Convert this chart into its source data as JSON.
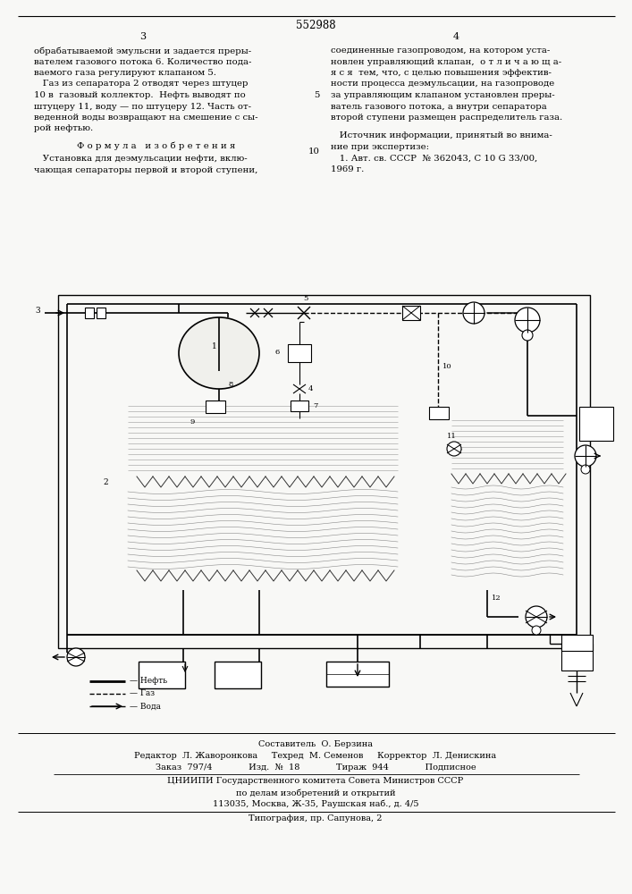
{
  "patent_number": "552988",
  "page_numbers": [
    "3",
    "4"
  ],
  "text_left": [
    "обрабатываемой эмульсни и задается преры-",
    "вателем газового потока 6. Количество пода-",
    "ваемого газа регулируют клапаном 5.",
    "   Газ из сепаратора 2 отводят через штуцер",
    "10 в  газовый коллектор.  Нефть выводят по",
    "штуцеру 11, воду — по штуцеру 12. Часть от-",
    "веденной воды возвращают на смешение с сы-",
    "рой нефтью."
  ],
  "formula_title": "Ф о р м у л а   и з о б р е т е н и я",
  "formula_text": [
    "   Установка для деэмульсации нефти, вклю-",
    "чающая сепараторы первой и второй ступени,"
  ],
  "text_right": [
    "соединенные газопроводом, на котором уста-",
    "новлен управляющий клапан,  о т л и ч а ю щ а-",
    "я с я  тем, что, с целью повышения эффектив-",
    "ности процесса деэмульсации, на газопроводе",
    "за управляющим клапаном установлен преры-",
    "ватель газового потока, а внутри сепаратора",
    "второй ступени размещен распределитель газа."
  ],
  "source_title": "   Источник информации, принятый во внима-",
  "source_lines": [
    "ние при экспертизе:",
    "   1. Авт. св. СССР  № 362043, С 10 G 33/00,",
    "1969 г."
  ],
  "bottom_staff": [
    "Составитель  О. Берзина",
    "Редактор  Л. Жаворонкова     Техред  М. Семенов     Корректор  Л. Денискина",
    "Заказ  797/4             Изд.  №  18             Тираж  944             Подписное",
    "ЦНИИПИ Государственного комитета Совета Министров СССР",
    "по делам изобретений и открытий",
    "113035, Москва, Ж-35, Раушская наб., д. 4/5",
    "Типография, пр. Сапунова, 2"
  ],
  "background_color": "#f8f8f6"
}
